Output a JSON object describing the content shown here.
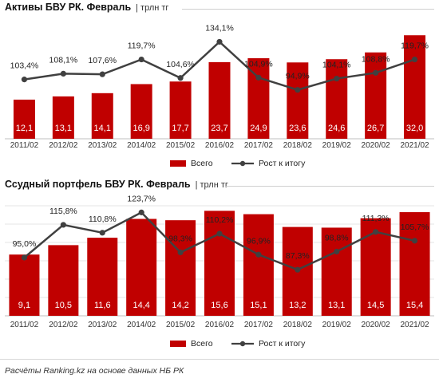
{
  "source": "Расчёты Ranking.kz на основе данных НБ РК",
  "colors": {
    "bar": "#c00000",
    "line": "#404040",
    "grid": "#e6e6e6"
  },
  "chart_data": [
    {
      "type": "bar",
      "title": "Активы БВУ РК. Февраль",
      "unit": "| трлн тг",
      "categories": [
        "2011/02",
        "2012/02",
        "2013/02",
        "2014/02",
        "2015/02",
        "2016/02",
        "2017/02",
        "2018/02",
        "2019/02",
        "2020/02",
        "2021/02"
      ],
      "legend": {
        "bar": "Всего",
        "line": "Рост к итогу",
        "position": "bottom"
      },
      "series": [
        {
          "name": "Всего",
          "type": "bar",
          "values": [
            12.1,
            13.1,
            14.1,
            16.9,
            17.7,
            23.7,
            24.9,
            23.6,
            24.6,
            26.7,
            32.0
          ],
          "labels": [
            "12,1",
            "13,1",
            "14,1",
            "16,9",
            "17,7",
            "23,7",
            "24,9",
            "23,6",
            "24,6",
            "26,7",
            "32,0"
          ]
        },
        {
          "name": "Рост к итогу",
          "type": "line",
          "values": [
            103.4,
            108.1,
            107.6,
            119.7,
            104.6,
            134.1,
            104.9,
            94.9,
            104.1,
            108.8,
            119.7
          ],
          "labels": [
            "103,4%",
            "108,1%",
            "107,6%",
            "119,7%",
            "104,6%",
            "134,1%",
            "104,9%",
            "94,9%",
            "104,1%",
            "108,8%",
            "119,7%"
          ]
        }
      ],
      "bar_ylim": [
        0,
        36
      ],
      "line_ylim": [
        55,
        150
      ],
      "grid": false
    },
    {
      "type": "bar",
      "title": "Ссудный портфель БВУ РК. Февраль",
      "unit": "| трлн тг",
      "categories": [
        "2011/02",
        "2012/02",
        "2013/02",
        "2014/02",
        "2015/02",
        "2016/02",
        "2017/02",
        "2018/02",
        "2019/02",
        "2020/02",
        "2021/02"
      ],
      "legend": {
        "bar": "Всего",
        "line": "Рост к итогу",
        "position": "bottom"
      },
      "series": [
        {
          "name": "Всего",
          "type": "bar",
          "values": [
            9.1,
            10.5,
            11.6,
            14.4,
            14.2,
            15.6,
            15.1,
            13.2,
            13.1,
            14.5,
            15.4
          ],
          "labels": [
            "9,1",
            "10,5",
            "11,6",
            "14,4",
            "14,2",
            "15,6",
            "15,1",
            "13,2",
            "13,1",
            "14,5",
            "15,4"
          ]
        },
        {
          "name": "Рост к итогу",
          "type": "line",
          "values": [
            95.0,
            115.8,
            110.8,
            123.7,
            98.3,
            110.2,
            96.9,
            87.3,
            98.8,
            111.3,
            105.7
          ],
          "labels": [
            "95,0%",
            "115,8%",
            "110,8%",
            "123,7%",
            "98,3%",
            "110,2%",
            "96,9%",
            "87,3%",
            "98,8%",
            "111,3%",
            "105,7%"
          ]
        }
      ],
      "bar_ylim": [
        0,
        17.3
      ],
      "line_ylim": [
        58,
        132
      ],
      "grid": true
    }
  ]
}
